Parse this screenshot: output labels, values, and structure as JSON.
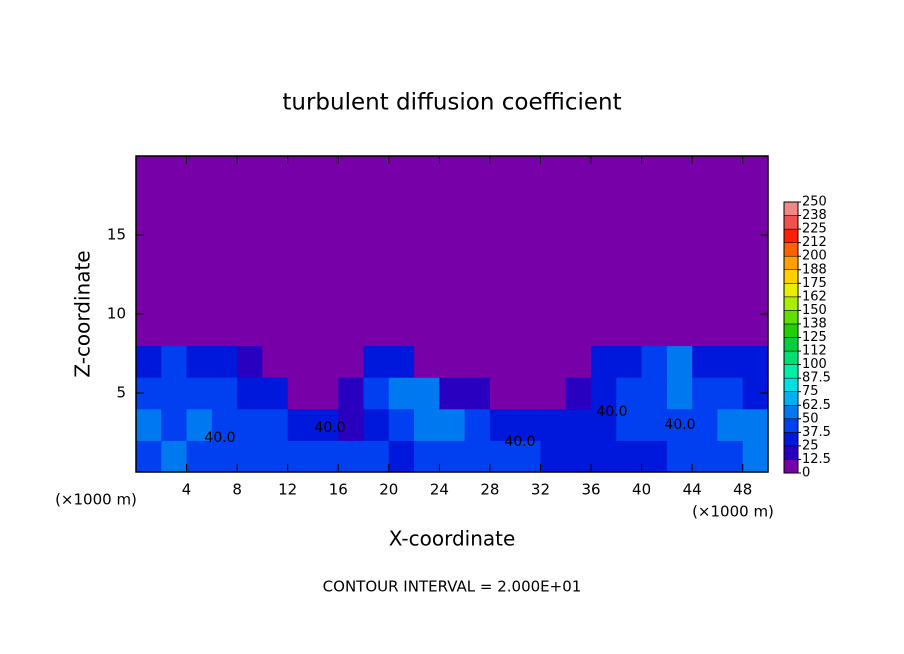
{
  "chart_data": {
    "type": "contour",
    "title": "turbulent diffusion coefficient",
    "x_label": "X-coordinate",
    "y_label": "Z-coordinate",
    "x_unit_label": "(×1000 m)",
    "x_unit_label_right": "(×1000 m)",
    "footer": "CONTOUR INTERVAL = 2.000E+01",
    "contour_labels": [
      "40.0",
      "40.0",
      "40.0",
      "40.0",
      "40.0"
    ],
    "xlim": [
      0,
      50
    ],
    "ylim": [
      0,
      20
    ],
    "xticks": [
      4,
      8,
      12,
      16,
      20,
      24,
      28,
      32,
      36,
      40,
      44,
      48
    ],
    "yticks": [
      5,
      10,
      15
    ],
    "x": [
      1,
      3,
      5,
      7,
      9,
      11,
      13,
      15,
      17,
      19,
      21,
      23,
      25,
      27,
      29,
      31,
      33,
      35,
      37,
      39,
      41,
      43,
      45,
      47,
      49
    ],
    "y": [
      1,
      3,
      5,
      7,
      9,
      11,
      13,
      15,
      17,
      19
    ],
    "z": [
      [
        45,
        55,
        40,
        45,
        40,
        38,
        40,
        42,
        45,
        40,
        35,
        38,
        45,
        45,
        42,
        40,
        35,
        30,
        30,
        30,
        35,
        38,
        40,
        45,
        50
      ],
      [
        60,
        40,
        50,
        42,
        40,
        38,
        30,
        25,
        20,
        30,
        40,
        55,
        60,
        45,
        35,
        30,
        30,
        25,
        35,
        45,
        40,
        40,
        45,
        50,
        55
      ],
      [
        40,
        45,
        42,
        40,
        35,
        30,
        10,
        8,
        15,
        45,
        60,
        50,
        20,
        15,
        10,
        10,
        5,
        15,
        35,
        40,
        45,
        60,
        45,
        40,
        35
      ],
      [
        35,
        38,
        35,
        30,
        20,
        5,
        3,
        3,
        5,
        25,
        30,
        5,
        3,
        5,
        3,
        3,
        3,
        5,
        30,
        35,
        40,
        50,
        35,
        30,
        30
      ],
      [
        3,
        5,
        8,
        5,
        3,
        2,
        2,
        2,
        2,
        2,
        2,
        2,
        2,
        2,
        2,
        2,
        2,
        2,
        3,
        6,
        5,
        8,
        5,
        3,
        2
      ],
      [
        0,
        0,
        0,
        0,
        0,
        0,
        0,
        0,
        0,
        0,
        0,
        0,
        0,
        0,
        0,
        0,
        0,
        0,
        0,
        0,
        0,
        0,
        0,
        0,
        0
      ],
      [
        0,
        0,
        0,
        0,
        0,
        0,
        0,
        0,
        0,
        0,
        0,
        0,
        0,
        0,
        0,
        0,
        0,
        0,
        0,
        0,
        0,
        0,
        0,
        0,
        0
      ],
      [
        0,
        0,
        0,
        0,
        0,
        0,
        0,
        0,
        0,
        0,
        0,
        0,
        0,
        0,
        0,
        0,
        0,
        0,
        0,
        0,
        0,
        0,
        0,
        0,
        0
      ],
      [
        0,
        0,
        0,
        0,
        0,
        0,
        0,
        0,
        0,
        0,
        0,
        0,
        0,
        0,
        0,
        0,
        0,
        0,
        0,
        0,
        0,
        0,
        0,
        0,
        0
      ],
      [
        0,
        0,
        0,
        0,
        0,
        0,
        0,
        0,
        0,
        0,
        0,
        0,
        0,
        0,
        0,
        0,
        0,
        0,
        0,
        0,
        0,
        0,
        0,
        0,
        0
      ]
    ],
    "colorbar_ticks": [
      0,
      12.5,
      25,
      37.5,
      50,
      62.5,
      75,
      87.5,
      100,
      {
        "value": 112.5,
        "label": "112"
      },
      125,
      {
        "value": 137.5,
        "label": "138"
      },
      150,
      {
        "value": 162.5,
        "label": "162"
      },
      175,
      {
        "value": 187.5,
        "label": "188"
      },
      200,
      {
        "value": 212.5,
        "label": "212"
      },
      225,
      {
        "value": 237.5,
        "label": "238"
      },
      250
    ],
    "colors": [
      "#7800a8",
      "#2a00c0",
      "#0018dc",
      "#0040f0",
      "#0078f0",
      "#00b0f0",
      "#00e0e0",
      "#00f0a8",
      "#00e070",
      "#00d040",
      "#20d000",
      "#60e000",
      "#a8f000",
      "#e8f000",
      "#ffd000",
      "#ffa000",
      "#ff6000",
      "#ff2000",
      "#f05050",
      "#f08888"
    ]
  }
}
